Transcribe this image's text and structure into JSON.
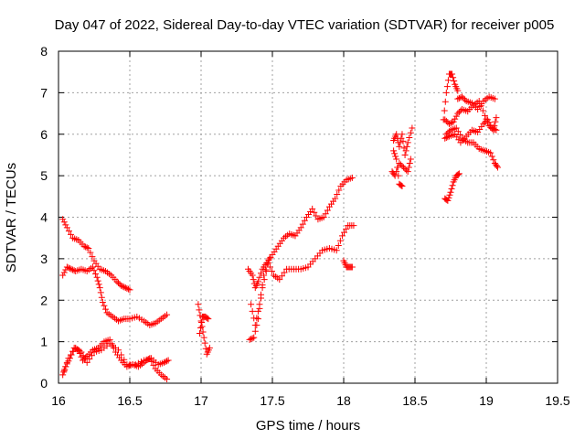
{
  "chart_data": {
    "type": "scatter",
    "title": "Day 047 of 2022, Sidereal Day-to-day VTEC variation (SDTVAR) for receiver p005",
    "xlabel": "GPS time / hours",
    "ylabel": "SDTVAR / TECUs",
    "xlim": [
      16,
      19.5
    ],
    "ylim": [
      0,
      8
    ],
    "xticks": [
      16,
      16.5,
      17,
      17.5,
      18,
      18.5,
      19,
      19.5
    ],
    "xtick_labels": [
      "16",
      "16.5",
      "17",
      "17.5",
      "18",
      "18.5",
      "19",
      "19.5"
    ],
    "yticks": [
      0,
      1,
      2,
      3,
      4,
      5,
      6,
      7,
      8
    ],
    "ytick_labels": [
      "0",
      "1",
      "2",
      "3",
      "4",
      "5",
      "6",
      "7",
      "8"
    ],
    "grid": true,
    "marker": "+",
    "color": "#ff0000",
    "series": [
      {
        "name": "trace 1",
        "x": [
          16.03,
          16.06,
          16.1,
          16.14,
          16.18,
          16.21,
          16.25,
          16.29,
          16.33,
          16.37,
          16.41,
          16.44,
          16.47,
          16.5
        ],
        "y": [
          3.95,
          3.75,
          3.5,
          3.45,
          3.3,
          3.25,
          2.95,
          2.75,
          2.7,
          2.6,
          2.45,
          2.35,
          2.3,
          2.25
        ]
      },
      {
        "name": "trace 2",
        "x": [
          16.03,
          16.06,
          16.09,
          16.12,
          16.16,
          16.2,
          16.24,
          16.27,
          16.29,
          16.31,
          16.34,
          16.38,
          16.42,
          16.46,
          16.5,
          16.55,
          16.6,
          16.64,
          16.68,
          16.72,
          16.76
        ],
        "y": [
          2.6,
          2.8,
          2.75,
          2.7,
          2.75,
          2.7,
          2.8,
          2.55,
          2.3,
          1.95,
          1.7,
          1.6,
          1.5,
          1.55,
          1.55,
          1.6,
          1.5,
          1.4,
          1.45,
          1.55,
          1.65
        ]
      },
      {
        "name": "trace 3",
        "x": [
          16.03,
          16.05,
          16.08,
          16.11,
          16.14,
          16.17,
          16.2,
          16.24,
          16.28,
          16.32,
          16.36,
          16.4,
          16.44,
          16.48,
          16.52,
          16.56,
          16.6,
          16.64,
          16.68,
          16.72,
          16.76
        ],
        "y": [
          0.2,
          0.4,
          0.6,
          0.85,
          0.8,
          0.55,
          0.65,
          0.8,
          0.85,
          1.0,
          1.05,
          0.75,
          0.55,
          0.4,
          0.45,
          0.4,
          0.5,
          0.6,
          0.35,
          0.2,
          0.1
        ]
      },
      {
        "name": "trace 4",
        "x": [
          16.04,
          16.07,
          16.12,
          16.16,
          16.2,
          16.25,
          16.3,
          16.36,
          16.42,
          16.48,
          16.54,
          16.6,
          16.65,
          16.7,
          16.74,
          16.77
        ],
        "y": [
          0.3,
          0.6,
          0.85,
          0.75,
          0.5,
          0.75,
          0.8,
          0.95,
          0.8,
          0.45,
          0.45,
          0.55,
          0.6,
          0.45,
          0.5,
          0.55
        ]
      },
      {
        "name": "trace 5",
        "x": [
          16.98,
          17.0,
          17.02,
          17.04,
          17.06
        ],
        "y": [
          1.9,
          1.5,
          1.1,
          0.7,
          0.85
        ]
      },
      {
        "name": "trace 6",
        "x": [
          16.99,
          17.01,
          17.03,
          17.05
        ],
        "y": [
          1.2,
          1.6,
          1.6,
          1.55
        ]
      },
      {
        "name": "trace 7",
        "x": [
          17.33,
          17.36,
          17.38,
          17.4,
          17.43,
          17.46,
          17.5,
          17.54,
          17.58,
          17.62,
          17.66,
          17.7,
          17.74,
          17.78,
          17.82,
          17.86,
          17.9,
          17.94,
          17.98,
          18.02,
          18.06
        ],
        "y": [
          2.75,
          2.6,
          2.3,
          2.45,
          2.75,
          2.9,
          3.1,
          3.3,
          3.5,
          3.6,
          3.55,
          3.75,
          4.0,
          4.2,
          3.95,
          4.0,
          4.25,
          4.45,
          4.75,
          4.9,
          4.95
        ]
      },
      {
        "name": "trace 8",
        "x": [
          17.34,
          17.37,
          17.4,
          17.43,
          17.47,
          17.51,
          17.55,
          17.6,
          17.65,
          17.7,
          17.75,
          17.8,
          17.85,
          17.9,
          17.95,
          17.99,
          18.03,
          18.07
        ],
        "y": [
          1.05,
          1.1,
          1.55,
          2.3,
          2.9,
          2.6,
          2.5,
          2.75,
          2.75,
          2.75,
          2.8,
          3.0,
          3.2,
          3.25,
          3.2,
          3.55,
          3.8,
          3.8
        ]
      },
      {
        "name": "trace 9",
        "x": [
          17.35,
          17.38,
          17.41,
          17.44,
          17.48
        ],
        "y": [
          1.9,
          1.4,
          1.9,
          2.6,
          3.0
        ]
      },
      {
        "name": "trace 10",
        "x": [
          18.0,
          18.02,
          18.04,
          18.06
        ],
        "y": [
          2.95,
          2.8,
          2.8,
          2.8
        ]
      },
      {
        "name": "trace 11",
        "x": [
          18.35,
          18.37,
          18.39,
          18.41,
          18.43,
          18.45,
          18.48
        ],
        "y": [
          5.85,
          6.0,
          5.7,
          6.0,
          5.5,
          5.8,
          6.15
        ]
      },
      {
        "name": "trace 12",
        "x": [
          18.34,
          18.36,
          18.39,
          18.42,
          18.45,
          18.47
        ],
        "y": [
          5.1,
          5.0,
          5.3,
          5.2,
          5.1,
          5.4
        ]
      },
      {
        "name": "trace 13",
        "x": [
          18.35,
          18.37,
          18.39,
          18.41
        ],
        "y": [
          5.6,
          5.4,
          4.8,
          4.75
        ]
      },
      {
        "name": "trace 14",
        "x": [
          18.7,
          18.72,
          18.74,
          18.76,
          18.78,
          18.8
        ],
        "y": [
          6.35,
          7.0,
          7.45,
          7.45,
          7.2,
          7.05
        ]
      },
      {
        "name": "trace 15",
        "x": [
          18.8,
          18.83,
          18.86,
          18.9,
          18.94,
          18.98,
          19.02,
          19.06
        ],
        "y": [
          6.85,
          6.9,
          6.8,
          6.75,
          6.6,
          6.8,
          6.9,
          6.85
        ]
      },
      {
        "name": "trace 16",
        "x": [
          18.71,
          18.74,
          18.77,
          18.8,
          18.83,
          18.87,
          18.91,
          18.95,
          18.99,
          19.02,
          19.05,
          19.07
        ],
        "y": [
          6.35,
          6.25,
          6.3,
          6.5,
          6.6,
          6.55,
          6.7,
          6.8,
          6.45,
          6.2,
          6.1,
          6.4
        ]
      },
      {
        "name": "trace 17",
        "x": [
          18.71,
          18.74,
          18.78,
          18.82,
          18.86,
          18.9,
          18.94,
          18.98,
          19.01,
          19.04,
          19.07
        ],
        "y": [
          5.9,
          5.95,
          6.0,
          5.8,
          5.95,
          6.1,
          6.05,
          6.25,
          6.35,
          6.15,
          6.1
        ]
      },
      {
        "name": "trace 18",
        "x": [
          18.72,
          18.75,
          18.79,
          18.83,
          18.87,
          18.91,
          18.95,
          18.99,
          19.03,
          19.06,
          19.08
        ],
        "y": [
          6.0,
          6.1,
          6.15,
          5.9,
          5.8,
          5.8,
          5.65,
          5.6,
          5.55,
          5.3,
          5.2
        ]
      },
      {
        "name": "trace 19",
        "x": [
          18.71,
          18.73,
          18.75,
          18.77,
          18.79,
          18.81
        ],
        "y": [
          4.45,
          4.4,
          4.6,
          4.85,
          5.0,
          5.05
        ]
      }
    ]
  }
}
